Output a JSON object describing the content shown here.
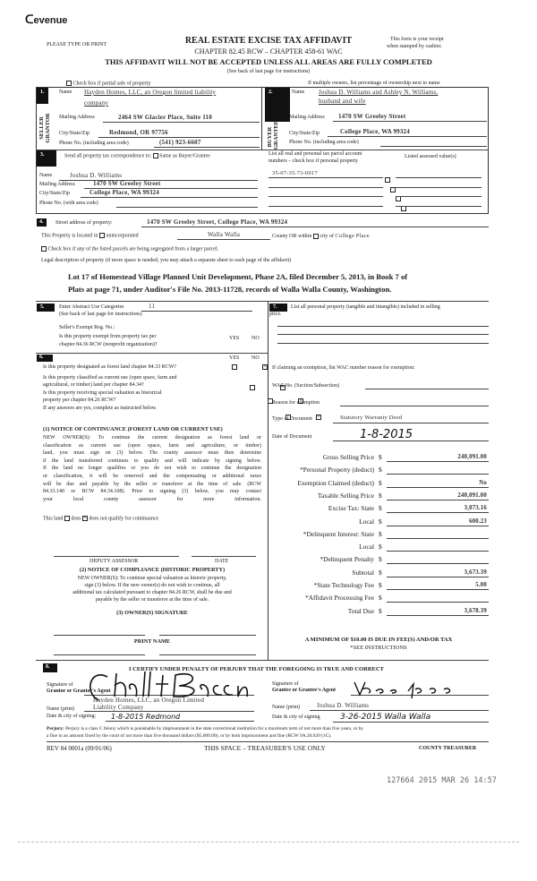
{
  "header": {
    "logo": "Revenue",
    "please": "PLEASE TYPE OR PRINT",
    "title": "REAL ESTATE EXCISE TAX AFFIDAVIT",
    "chapter": "CHAPTER 82.45 RCW – CHAPTER 458-61 WAC",
    "warning": "THIS AFFIDAVIT WILL NOT BE ACCEPTED UNLESS ALL AREAS ARE FULLY COMPLETED",
    "see_back": "(See back of last page for instructions)",
    "receipt1": "This form is your receipt",
    "receipt2": "when stamped by cashier."
  },
  "partial_sale": "Check box if partial sale of property",
  "multiple_owners": "If multiple owners, list percentage of ownership next to name",
  "seller": {
    "num": "1.",
    "side": "SELLER GRANTOR",
    "name_label": "Name",
    "name1": "Hayden Homes, LLC, an Oregon limited liability",
    "name2": "company",
    "mail_label": "Mailing Address",
    "mail": "2464 SW Glacier Place, Suite 110",
    "city_label": "City/State/Zip",
    "city": "Redmond, OR 97756",
    "phone_label": "Phone No. (including area code)",
    "phone": "(541) 923-6607"
  },
  "buyer": {
    "num": "2.",
    "side": "BUYER GRANTEE",
    "name_label": "Name",
    "name1": "Joshua D. Williams and Ashley N. Williams,",
    "name2": "husband and wife",
    "mail_label": "Mailing Address",
    "mail": "1470 SW Greeley Street",
    "city_label": "City/State/Zip",
    "city": "College Place, WA 99324",
    "phone_label": "Phone No. (including area code)",
    "phone": ""
  },
  "sec3": {
    "num": "3.",
    "header": "Send all property tax correspondence to:",
    "same": "Same as Buyer/Grantee",
    "name_label": "Name",
    "name": "Joshua D. Williams",
    "mail_label": "Mailing Address",
    "mail": "1470 SW Greeley Street",
    "city_label": "City/State/Zip",
    "city": "College Place, WA 99324",
    "phone_label": "Phone No. (with area code)",
    "parcel_hdr1": "List all real and personal tax parcel account",
    "parcel_hdr2": "numbers – check box if personal property",
    "assessed_hdr": "Listed assessed value(s)",
    "parcels": [
      "35-07-35-73-0017",
      "",
      "",
      ""
    ]
  },
  "sec4": {
    "num": "4.",
    "street_label": "Street address of property:",
    "street": "1470 SW Greeley Street, College Place, WA 99324",
    "located": "This Property is located in",
    "unincorporated": "unincorporated",
    "county": "Walla Walla",
    "county_or": "County OR  within",
    "city_of": "city of",
    "city": "College Place",
    "segregated": "Check box if any of the listed parcels are being segregated from a larger parcel.",
    "legal_label": "Legal description of property (if more space is needed, you may attach a separate sheet to each page of the affidavit)",
    "legal1": "Lot 17 of Homestead Village Planned Unit Development, Phase 2A, filed December 5, 2013, in Book 7 of",
    "legal2": "Plats at page 71, under Auditor's File No. 2013-11728, records of Walla Walla County, Washington."
  },
  "sec5": {
    "num": "5.",
    "label": "Enter Abstract Use Categories",
    "value": "11",
    "see_back": "(See back of last page for instructions)",
    "exempt_reg": "Seller's Exempt Reg. No.:",
    "q1a": "Is this property exempt from property tax per",
    "q1b": "chapter 84.36 RCW (nonprofit organization)?",
    "yes": "YES",
    "no": "NO"
  },
  "sec6": {
    "num": "6.",
    "q_forest": "Is this property designated as forest land chapter 84.33 RCW?",
    "q_cu1": "Is this property classified as current use (open space, farm and",
    "q_cu2": "agricultural, or timber) land per chapter 84.34?",
    "q_h1": "Is this property receiving special valuation as historical",
    "q_h2": "property per chapter 84.26 RCW?",
    "if_any": "If any answers are yes, complete as instructed below.",
    "notice1_title": "(1) NOTICE OF CONTINUANCE (FOREST LAND OR CURRENT USE)",
    "notice1": [
      "NEW OWNER(S): To continue the current designation as forest land or",
      "classification as current use (open space, farm and agriculture, or timber)",
      "land, you must sign on (3) below. The county assessor must then determine",
      "if the land transferred continues to qualify and will indicate by signing below.",
      "If the land no longer qualifies or you do not wish to continue the designation",
      "or classification, it will be removed and the compensating or additional taxes",
      "will be due and payable by the seller or transferor at the time of sale. (RCW",
      "84.33.140 or RCW 84.34.108). Prior to signing (3) below, you may contact",
      "your local county assessor for more information."
    ],
    "this_land": "This land",
    "does": "does",
    "does_not": "does not  qualify for continuance",
    "deputy": "DEPUTY ASSESSOR",
    "date": "DATE",
    "notice2_title": "(2) NOTICE OF COMPLIANCE (HISTORIC PROPERTY)",
    "notice2": [
      "NEW OWNER(S): To continue special valuation as historic property,",
      "sign (3) below. If the new owner(s) do not wish to continue, all",
      "additional tax calculated pursuant to chapter 84.26 RCW, shall be due and",
      "payable by the seller or transferor at the time of sale."
    ],
    "owner_sig": "(3) OWNER(S) SIGNATURE",
    "print_name": "PRINT NAME"
  },
  "sec7": {
    "num": "7.",
    "label1": "List all personal property (tangible and intangible) included in selling",
    "label2": "price.",
    "claim": "If claiming an exemption, list WAC number reason for exemption:",
    "wac": "WAC No. (Section/Subsection)",
    "reason": "Reason for exemption",
    "type_label": "Type of Document",
    "type": "Statutory Warranty Deed",
    "date_label": "Date of Document",
    "date": "1-8-2015",
    "amounts": [
      {
        "label": "Gross Selling Price",
        "value": "240,091.00"
      },
      {
        "label": "*Personal Property (deduct)",
        "value": ""
      },
      {
        "label": "Exemption Claimed (deduct)",
        "value": "No"
      },
      {
        "label": "Taxable Selling Price",
        "value": "240,091.00"
      },
      {
        "label": "Excise Tax:  State",
        "value": "3,073.16"
      },
      {
        "label": "Local",
        "value": "600.23"
      },
      {
        "label": "*Delinquent Interest:  State",
        "value": ""
      },
      {
        "label": "Local",
        "value": ""
      },
      {
        "label": "*Delinquent Penalty",
        "value": ""
      },
      {
        "label": "Subtotal",
        "value": "3,673.39"
      },
      {
        "label": "*State Technology Fee",
        "value": "5.00"
      },
      {
        "label": "*Affidavit Processing Fee",
        "value": ""
      },
      {
        "label": "Total Due",
        "value": "3,678.39"
      }
    ],
    "currency": "$",
    "minimum": "A MINIMUM OF $10.00 IS DUE IN FEE(S) AND/OR TAX",
    "see_instr": "*SEE INSTRUCTIONS"
  },
  "sec8": {
    "num": "8.",
    "certify": "I CERTIFY UNDER PENALTY OF PERJURY THAT THE FOREGOING IS TRUE AND CORRECT",
    "sig_of": "Signature of",
    "grantor": "Grantor or Grantor's Agent",
    "grantor_name1": "Hayden Homes, LLC, an Oregon Limited",
    "grantor_name2": "Liability Company",
    "name_print": "Name (print)",
    "date_city": "Date & city of signing:",
    "grantor_date": "1-8-2015  Redmond",
    "grantee": "Grantee or Grantee's Agent",
    "grantee_name": "Joshua D. Williams",
    "grantee_date": "3-26-2015 Walla Walla",
    "date_city2": "Date & city of signing",
    "perjury_b": "Perjury:",
    "perjury1": "Perjury is a class C felony which is punishable by imprisonment in the state correctional institution for a maximum term of not more than five years, or by",
    "perjury2": "a fine in an amount fixed by the court of not more than five thousand dollars ($5,000.00), or by both imprisonment and fine (RCW 9A.20.020 (1C).",
    "rev": "REV 84 0001a (09/01/06)",
    "treasurer_space": "THIS SPACE – TREASURER'S USE ONLY",
    "county_treasurer": "COUNTY TREASURER"
  },
  "stamp": "127664 2015 MAR 26 14:57"
}
